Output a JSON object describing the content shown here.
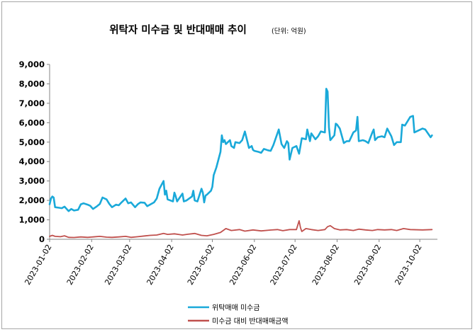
{
  "chart_data": {
    "type": "line",
    "title": "위탁자 미수금 및 반대매매 추이",
    "title_unit": "(단위: 억원)",
    "ylim": [
      0,
      9000
    ],
    "yticks": [
      "0",
      "1,000",
      "2,000",
      "3,000",
      "4,000",
      "5,000",
      "6,000",
      "7,000",
      "8,000",
      "9,000"
    ],
    "xlim": [
      "2023-01-02",
      "2023-10-15"
    ],
    "xticks": [
      "2023-01-02",
      "2023-02-02",
      "2023-03-02",
      "2023-04-02",
      "2023-05-02",
      "2023-06-02",
      "2023-07-02",
      "2023-08-02",
      "2023-09-02",
      "2023-10-02"
    ],
    "grid": false,
    "legend_position": "bottom",
    "series": [
      {
        "name": "위탁매매 미수금",
        "color": "#1aa9d9",
        "points": [
          [
            "2023-01-02",
            1800
          ],
          [
            "2023-01-03",
            2100
          ],
          [
            "2023-01-04",
            2200
          ],
          [
            "2023-01-05",
            2150
          ],
          [
            "2023-01-06",
            1650
          ],
          [
            "2023-01-09",
            1620
          ],
          [
            "2023-01-11",
            1600
          ],
          [
            "2023-01-13",
            1680
          ],
          [
            "2023-01-16",
            1450
          ],
          [
            "2023-01-18",
            1560
          ],
          [
            "2023-01-20",
            1480
          ],
          [
            "2023-01-23",
            1520
          ],
          [
            "2023-01-25",
            1800
          ],
          [
            "2023-01-27",
            1850
          ],
          [
            "2023-01-30",
            1780
          ],
          [
            "2023-02-01",
            1720
          ],
          [
            "2023-02-03",
            1560
          ],
          [
            "2023-02-06",
            1700
          ],
          [
            "2023-02-08",
            1820
          ],
          [
            "2023-02-10",
            2150
          ],
          [
            "2023-02-13",
            2050
          ],
          [
            "2023-02-15",
            1820
          ],
          [
            "2023-02-17",
            1650
          ],
          [
            "2023-02-20",
            1780
          ],
          [
            "2023-02-22",
            1750
          ],
          [
            "2023-02-24",
            1900
          ],
          [
            "2023-02-27",
            2100
          ],
          [
            "2023-03-01",
            1850
          ],
          [
            "2023-03-03",
            1900
          ],
          [
            "2023-03-06",
            1650
          ],
          [
            "2023-03-08",
            1800
          ],
          [
            "2023-03-10",
            1900
          ],
          [
            "2023-03-13",
            1880
          ],
          [
            "2023-03-15",
            1700
          ],
          [
            "2023-03-17",
            1780
          ],
          [
            "2023-03-20",
            1900
          ],
          [
            "2023-03-22",
            2100
          ],
          [
            "2023-03-24",
            2600
          ],
          [
            "2023-03-27",
            3000
          ],
          [
            "2023-03-28",
            2300
          ],
          [
            "2023-03-29",
            2500
          ],
          [
            "2023-03-30",
            2050
          ],
          [
            "2023-04-03",
            1950
          ],
          [
            "2023-04-04",
            2400
          ],
          [
            "2023-04-05",
            2200
          ],
          [
            "2023-04-06",
            1950
          ],
          [
            "2023-04-10",
            2350
          ],
          [
            "2023-04-11",
            1950
          ],
          [
            "2023-04-13",
            2000
          ],
          [
            "2023-04-17",
            2200
          ],
          [
            "2023-04-18",
            2500
          ],
          [
            "2023-04-19",
            2000
          ],
          [
            "2023-04-21",
            1950
          ],
          [
            "2023-04-24",
            2600
          ],
          [
            "2023-04-25",
            2400
          ],
          [
            "2023-04-26",
            1900
          ],
          [
            "2023-04-27",
            2250
          ],
          [
            "2023-04-28",
            2300
          ],
          [
            "2023-05-01",
            2500
          ],
          [
            "2023-05-02",
            2700
          ],
          [
            "2023-05-03",
            3300
          ],
          [
            "2023-05-05",
            3700
          ],
          [
            "2023-05-08",
            4500
          ],
          [
            "2023-05-09",
            5350
          ],
          [
            "2023-05-10",
            5000
          ],
          [
            "2023-05-11",
            5100
          ],
          [
            "2023-05-12",
            4900
          ],
          [
            "2023-05-15",
            5100
          ],
          [
            "2023-05-16",
            4800
          ],
          [
            "2023-05-18",
            4700
          ],
          [
            "2023-05-19",
            5000
          ],
          [
            "2023-05-22",
            4950
          ],
          [
            "2023-05-24",
            5100
          ],
          [
            "2023-05-26",
            5550
          ],
          [
            "2023-05-29",
            4700
          ],
          [
            "2023-05-31",
            4800
          ],
          [
            "2023-06-01",
            4600
          ],
          [
            "2023-06-02",
            4550
          ],
          [
            "2023-06-05",
            4500
          ],
          [
            "2023-06-07",
            4450
          ],
          [
            "2023-06-09",
            4650
          ],
          [
            "2023-06-12",
            4580
          ],
          [
            "2023-06-14",
            4550
          ],
          [
            "2023-06-16",
            4850
          ],
          [
            "2023-06-19",
            5450
          ],
          [
            "2023-06-20",
            5650
          ],
          [
            "2023-06-22",
            4900
          ],
          [
            "2023-06-24",
            4700
          ],
          [
            "2023-06-26",
            5050
          ],
          [
            "2023-06-27",
            4950
          ],
          [
            "2023-06-28",
            4100
          ],
          [
            "2023-06-30",
            4700
          ],
          [
            "2023-07-03",
            4800
          ],
          [
            "2023-07-05",
            4400
          ],
          [
            "2023-07-07",
            5200
          ],
          [
            "2023-07-10",
            5150
          ],
          [
            "2023-07-11",
            5650
          ],
          [
            "2023-07-13",
            5050
          ],
          [
            "2023-07-14",
            5450
          ],
          [
            "2023-07-17",
            5150
          ],
          [
            "2023-07-19",
            5300
          ],
          [
            "2023-07-21",
            5550
          ],
          [
            "2023-07-24",
            5500
          ],
          [
            "2023-07-25",
            7750
          ],
          [
            "2023-07-26",
            7600
          ],
          [
            "2023-07-27",
            5750
          ],
          [
            "2023-07-28",
            5100
          ],
          [
            "2023-07-31",
            5350
          ],
          [
            "2023-08-01",
            5950
          ],
          [
            "2023-08-02",
            5900
          ],
          [
            "2023-08-04",
            5700
          ],
          [
            "2023-08-07",
            4950
          ],
          [
            "2023-08-09",
            5050
          ],
          [
            "2023-08-11",
            5050
          ],
          [
            "2023-08-14",
            5500
          ],
          [
            "2023-08-16",
            5600
          ],
          [
            "2023-08-17",
            6300
          ],
          [
            "2023-08-18",
            5050
          ],
          [
            "2023-08-21",
            5100
          ],
          [
            "2023-08-23",
            5050
          ],
          [
            "2023-08-25",
            4950
          ],
          [
            "2023-08-28",
            5500
          ],
          [
            "2023-08-29",
            5650
          ],
          [
            "2023-08-30",
            5100
          ],
          [
            "2023-09-01",
            5250
          ],
          [
            "2023-09-04",
            5300
          ],
          [
            "2023-09-06",
            5250
          ],
          [
            "2023-09-08",
            5700
          ],
          [
            "2023-09-11",
            5300
          ],
          [
            "2023-09-13",
            4850
          ],
          [
            "2023-09-15",
            5000
          ],
          [
            "2023-09-18",
            5000
          ],
          [
            "2023-09-19",
            5900
          ],
          [
            "2023-09-21",
            5850
          ],
          [
            "2023-09-25",
            6300
          ],
          [
            "2023-09-27",
            6350
          ],
          [
            "2023-09-28",
            5500
          ],
          [
            "2023-10-04",
            5700
          ],
          [
            "2023-10-06",
            5650
          ],
          [
            "2023-10-10",
            5250
          ],
          [
            "2023-10-11",
            5350
          ]
        ]
      },
      {
        "name": "미수금 대비 반대매매금액",
        "color": "#c0504d",
        "points": [
          [
            "2023-01-02",
            150
          ],
          [
            "2023-01-04",
            200
          ],
          [
            "2023-01-06",
            150
          ],
          [
            "2023-01-10",
            130
          ],
          [
            "2023-01-13",
            180
          ],
          [
            "2023-01-16",
            100
          ],
          [
            "2023-01-20",
            90
          ],
          [
            "2023-01-25",
            120
          ],
          [
            "2023-01-30",
            100
          ],
          [
            "2023-02-03",
            120
          ],
          [
            "2023-02-08",
            150
          ],
          [
            "2023-02-13",
            110
          ],
          [
            "2023-02-17",
            100
          ],
          [
            "2023-02-22",
            120
          ],
          [
            "2023-02-27",
            150
          ],
          [
            "2023-03-03",
            100
          ],
          [
            "2023-03-08",
            130
          ],
          [
            "2023-03-13",
            170
          ],
          [
            "2023-03-17",
            200
          ],
          [
            "2023-03-22",
            220
          ],
          [
            "2023-03-27",
            300
          ],
          [
            "2023-03-30",
            250
          ],
          [
            "2023-04-04",
            280
          ],
          [
            "2023-04-10",
            220
          ],
          [
            "2023-04-14",
            260
          ],
          [
            "2023-04-19",
            300
          ],
          [
            "2023-04-24",
            200
          ],
          [
            "2023-04-28",
            180
          ],
          [
            "2023-05-03",
            250
          ],
          [
            "2023-05-08",
            350
          ],
          [
            "2023-05-12",
            550
          ],
          [
            "2023-05-16",
            450
          ],
          [
            "2023-05-22",
            500
          ],
          [
            "2023-05-26",
            420
          ],
          [
            "2023-06-01",
            480
          ],
          [
            "2023-06-07",
            430
          ],
          [
            "2023-06-13",
            470
          ],
          [
            "2023-06-19",
            500
          ],
          [
            "2023-06-23",
            440
          ],
          [
            "2023-06-28",
            500
          ],
          [
            "2023-07-03",
            500
          ],
          [
            "2023-07-05",
            950
          ],
          [
            "2023-07-06",
            600
          ],
          [
            "2023-07-07",
            400
          ],
          [
            "2023-07-10",
            550
          ],
          [
            "2023-07-14",
            500
          ],
          [
            "2023-07-19",
            450
          ],
          [
            "2023-07-24",
            500
          ],
          [
            "2023-07-26",
            650
          ],
          [
            "2023-07-28",
            700
          ],
          [
            "2023-07-31",
            550
          ],
          [
            "2023-08-04",
            480
          ],
          [
            "2023-08-09",
            500
          ],
          [
            "2023-08-14",
            450
          ],
          [
            "2023-08-18",
            520
          ],
          [
            "2023-08-23",
            480
          ],
          [
            "2023-08-28",
            450
          ],
          [
            "2023-09-01",
            500
          ],
          [
            "2023-09-06",
            480
          ],
          [
            "2023-09-11",
            500
          ],
          [
            "2023-09-15",
            450
          ],
          [
            "2023-09-20",
            550
          ],
          [
            "2023-09-25",
            500
          ],
          [
            "2023-10-04",
            480
          ],
          [
            "2023-10-11",
            500
          ]
        ]
      }
    ]
  }
}
